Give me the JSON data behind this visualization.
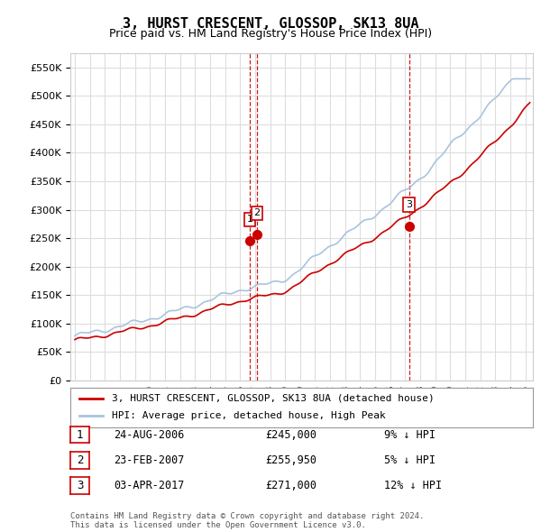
{
  "title": "3, HURST CRESCENT, GLOSSOP, SK13 8UA",
  "subtitle": "Price paid vs. HM Land Registry's House Price Index (HPI)",
  "ytick_values": [
    0,
    50000,
    100000,
    150000,
    200000,
    250000,
    300000,
    350000,
    400000,
    450000,
    500000,
    550000
  ],
  "ylim": [
    0,
    575000
  ],
  "xlim_start": 1994.7,
  "xlim_end": 2025.5,
  "background_color": "#ffffff",
  "plot_background": "#ffffff",
  "grid_color": "#dddddd",
  "hpi_line_color": "#aac4dd",
  "house_line_color": "#cc0000",
  "sale_marker_color": "#cc0000",
  "vline_color": "#cc0000",
  "transactions": [
    {
      "num": 1,
      "date_x": 2006.65,
      "price": 245000,
      "label": "1"
    },
    {
      "num": 2,
      "date_x": 2007.12,
      "price": 255950,
      "label": "2"
    },
    {
      "num": 3,
      "date_x": 2017.25,
      "price": 271000,
      "label": "3"
    }
  ],
  "table_rows": [
    {
      "num": "1",
      "date": "24-AUG-2006",
      "price": "£245,000",
      "pct": "9% ↓ HPI"
    },
    {
      "num": "2",
      "date": "23-FEB-2007",
      "price": "£255,950",
      "pct": "5% ↓ HPI"
    },
    {
      "num": "3",
      "date": "03-APR-2017",
      "price": "£271,000",
      "pct": "12% ↓ HPI"
    }
  ],
  "footer": "Contains HM Land Registry data © Crown copyright and database right 2024.\nThis data is licensed under the Open Government Licence v3.0.",
  "legend_line1": "3, HURST CRESCENT, GLOSSOP, SK13 8UA (detached house)",
  "legend_line2": "HPI: Average price, detached house, High Peak"
}
